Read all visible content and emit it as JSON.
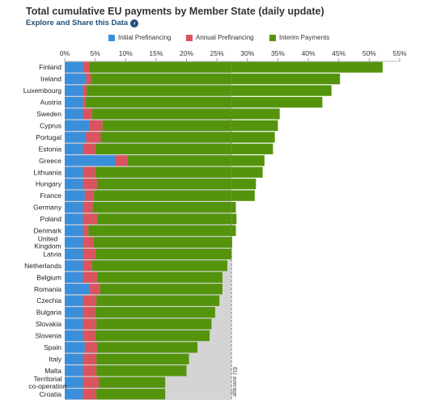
{
  "header": {
    "title": "Total cumulative EU payments by Member State (daily update)",
    "explore_label": "Explore and Share this Data"
  },
  "colors": {
    "initial": "#3a8fdb",
    "annual": "#d9545f",
    "interim": "#54940c",
    "eu_area": "#d4d4d4",
    "eu_line": "#888888",
    "explore": "#1f4e79"
  },
  "chart_data": {
    "type": "bar",
    "orientation": "horizontal",
    "stacked": true,
    "x_tick_labels": [
      "0%",
      "5%",
      "10%",
      "15%",
      "20%",
      "25%",
      "30%",
      "35%",
      "40%",
      "45%",
      "50%",
      "55%"
    ],
    "xlim": [
      0,
      55
    ],
    "unit": "%",
    "legend": [
      "Initial Prefinancing",
      "Annual Prefinancing",
      "Interim Payments"
    ],
    "legend_position": "top",
    "categories": [
      "Finland",
      "Ireland",
      "Luxembourg",
      "Austria",
      "Sweden",
      "Cyprus",
      "Portugal",
      "Estonia",
      "Greece",
      "Lithuania",
      "Hungary",
      "France",
      "Germany",
      "Poland",
      "Denmark",
      "United Kingdom",
      "Latvia",
      "Netherlands",
      "Belgium",
      "Romania",
      "Czechia",
      "Bulgaria",
      "Slovakia",
      "Slovenia",
      "Spain",
      "Italy",
      "Malta",
      "Territorial co-operation",
      "Croatia"
    ],
    "series": [
      {
        "name": "Initial Prefinancing",
        "values": [
          3,
          3.5,
          3,
          3,
          3,
          4,
          3.5,
          3,
          8.3,
          3,
          3,
          3.3,
          3,
          3,
          3,
          3,
          3,
          3,
          3,
          4,
          3,
          3,
          3,
          3,
          3.3,
          3,
          3,
          3,
          3
        ]
      },
      {
        "name": "Annual Prefinancing",
        "values": [
          1,
          0.8,
          0.6,
          0.5,
          1.5,
          2.2,
          2.4,
          2,
          2,
          2,
          2.3,
          1.5,
          1.6,
          2.3,
          0.9,
          1.7,
          2.1,
          1.5,
          2.3,
          1.8,
          2.2,
          2,
          2.2,
          2,
          2,
          2.2,
          2.2,
          2.6,
          2.2
        ]
      },
      {
        "name": "Interim Payments",
        "values": [
          48.2,
          40.9,
          40.2,
          38.8,
          30.8,
          28.8,
          28.6,
          29.2,
          22.5,
          27.5,
          26.1,
          26.4,
          23.5,
          22.9,
          24.2,
          22.8,
          22.3,
          22.2,
          20.6,
          20.1,
          20.2,
          19.7,
          18.9,
          18.8,
          16.5,
          15.2,
          14.8,
          10.9,
          11.3
        ]
      }
    ],
    "eu_average": {
      "label": "EU average",
      "value": 27.4
    },
    "grid": false
  }
}
